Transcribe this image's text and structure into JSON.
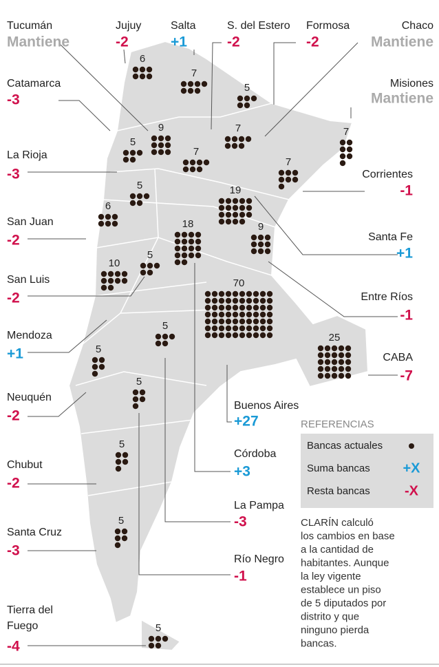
{
  "provinces": [
    {
      "name": "Tucumán",
      "change": "Mantiene",
      "seats": 9
    },
    {
      "name": "Jujuy",
      "change": "-2",
      "seats": 6
    },
    {
      "name": "Salta",
      "change": "+1",
      "seats": 7
    },
    {
      "name": "S. del Estero",
      "change": "-2",
      "seats": 7
    },
    {
      "name": "Formosa",
      "change": "-2",
      "seats": 5
    },
    {
      "name": "Chaco",
      "change": "Mantiene",
      "seats": 7
    },
    {
      "name": "Catamarca",
      "change": "-3",
      "seats": 5
    },
    {
      "name": "Misiones",
      "change": "Mantiene",
      "seats": 7
    },
    {
      "name": "La Rioja",
      "change": "-3",
      "seats": 5
    },
    {
      "name": "Corrientes",
      "change": "-1",
      "seats": 7
    },
    {
      "name": "San Juan",
      "change": "-2",
      "seats": 6
    },
    {
      "name": "Santa Fe",
      "change": "+1",
      "seats": 19
    },
    {
      "name": "San Luis",
      "change": "-2",
      "seats": 5
    },
    {
      "name": "Entre Ríos",
      "change": "-1",
      "seats": 9
    },
    {
      "name": "Mendoza",
      "change": "+1",
      "seats": 10
    },
    {
      "name": "CABA",
      "change": "-7",
      "seats": 25
    },
    {
      "name": "Neuquén",
      "change": "-2",
      "seats": 5
    },
    {
      "name": "Buenos Aires",
      "change": "+27",
      "seats": 70
    },
    {
      "name": "Chubut",
      "change": "-2",
      "seats": 5
    },
    {
      "name": "Córdoba",
      "change": "+3",
      "seats": 18
    },
    {
      "name": "La Pampa",
      "change": "-3",
      "seats": 5
    },
    {
      "name": "Santa Cruz",
      "change": "-3",
      "seats": 5
    },
    {
      "name": "Río Negro",
      "change": "-1",
      "seats": 5
    },
    {
      "name": [
        "Tierra del",
        "Fuego"
      ],
      "change": "-4",
      "seats": 5
    }
  ],
  "legend": {
    "title": "REFERENCIAS",
    "items": [
      {
        "label": "Bancas actuales"
      },
      {
        "label": "Suma bancas",
        "symbol": "+X"
      },
      {
        "label": "Resta bancas",
        "symbol": "-X"
      }
    ]
  },
  "note": [
    "CLARÍN calculó",
    "los cambios en base",
    "a la cantidad de",
    "habitantes. Aunque",
    "la ley vigente",
    "establece un piso",
    "de 5 diputados por",
    "distrito y que",
    "ninguno pierda",
    "bancas."
  ]
}
